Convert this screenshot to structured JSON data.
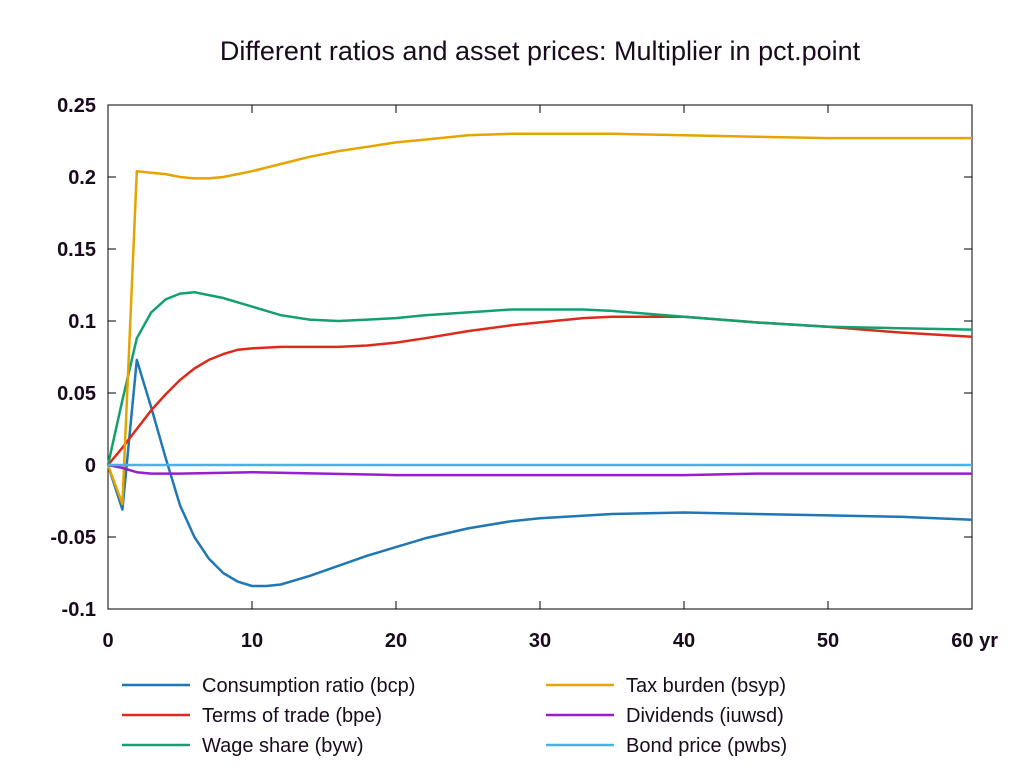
{
  "chart_data": {
    "type": "line",
    "title": "Different ratios and asset prices: Multiplier in pct.point",
    "xlabel": "",
    "ylabel": "",
    "xlim": [
      0,
      60
    ],
    "ylim": [
      -0.1,
      0.25
    ],
    "x_ticks": [
      0,
      10,
      20,
      30,
      40,
      50,
      60
    ],
    "x_tick_labels": [
      "0",
      "10",
      "20",
      "30",
      "40",
      "50",
      "60 yr"
    ],
    "y_ticks": [
      -0.1,
      -0.05,
      0,
      0.05,
      0.1,
      0.15,
      0.2,
      0.25
    ],
    "y_tick_labels": [
      "-0.1",
      "-0.05",
      "0",
      "0.05",
      "0.1",
      "0.15",
      "0.2",
      "0.25"
    ],
    "grid": false,
    "legend_position": "bottom",
    "series": [
      {
        "name": "Consumption ratio (bcp)",
        "color": "#1f77b4",
        "x": [
          0,
          1,
          2,
          3,
          4,
          5,
          6,
          7,
          8,
          9,
          10,
          11,
          12,
          14,
          16,
          18,
          20,
          22,
          25,
          28,
          30,
          35,
          40,
          45,
          50,
          55,
          60
        ],
        "y": [
          0,
          -0.031,
          0.073,
          0.04,
          0.005,
          -0.028,
          -0.05,
          -0.065,
          -0.075,
          -0.081,
          -0.084,
          -0.084,
          -0.083,
          -0.077,
          -0.07,
          -0.063,
          -0.057,
          -0.051,
          -0.044,
          -0.039,
          -0.037,
          -0.034,
          -0.033,
          -0.034,
          -0.035,
          -0.036,
          -0.038
        ]
      },
      {
        "name": "Terms of trade (bpe)",
        "color": "#dc2b1a",
        "x": [
          0,
          1,
          2,
          3,
          4,
          5,
          6,
          7,
          8,
          9,
          10,
          12,
          14,
          16,
          18,
          20,
          22,
          25,
          28,
          30,
          33,
          35,
          38,
          40,
          45,
          50,
          55,
          60
        ],
        "y": [
          0,
          0.012,
          0.025,
          0.038,
          0.049,
          0.059,
          0.067,
          0.073,
          0.077,
          0.08,
          0.081,
          0.082,
          0.082,
          0.082,
          0.083,
          0.085,
          0.088,
          0.093,
          0.097,
          0.099,
          0.102,
          0.103,
          0.103,
          0.103,
          0.099,
          0.096,
          0.092,
          0.089
        ]
      },
      {
        "name": "Wage share (byw)",
        "color": "#13a06e",
        "x": [
          0,
          1,
          2,
          3,
          4,
          5,
          6,
          7,
          8,
          9,
          10,
          12,
          14,
          16,
          18,
          20,
          22,
          25,
          28,
          30,
          33,
          35,
          40,
          45,
          50,
          55,
          60
        ],
        "y": [
          0,
          0.045,
          0.088,
          0.106,
          0.115,
          0.119,
          0.12,
          0.118,
          0.116,
          0.113,
          0.11,
          0.104,
          0.101,
          0.1,
          0.101,
          0.102,
          0.104,
          0.106,
          0.108,
          0.108,
          0.108,
          0.107,
          0.103,
          0.099,
          0.096,
          0.095,
          0.094
        ]
      },
      {
        "name": "Tax burden (bsyp)",
        "color": "#e6a400",
        "x": [
          0,
          1,
          2,
          3,
          4,
          5,
          6,
          7,
          8,
          9,
          10,
          12,
          14,
          16,
          18,
          20,
          22,
          25,
          28,
          30,
          35,
          40,
          45,
          50,
          55,
          60
        ],
        "y": [
          0,
          -0.027,
          0.204,
          0.203,
          0.202,
          0.2,
          0.199,
          0.199,
          0.2,
          0.202,
          0.204,
          0.209,
          0.214,
          0.218,
          0.221,
          0.224,
          0.226,
          0.229,
          0.23,
          0.23,
          0.23,
          0.229,
          0.228,
          0.227,
          0.227,
          0.227
        ]
      },
      {
        "name": "Dividends (iuwsd)",
        "color": "#9b1bd1",
        "x": [
          0,
          1,
          2,
          3,
          5,
          10,
          15,
          20,
          25,
          30,
          35,
          40,
          45,
          50,
          55,
          60
        ],
        "y": [
          0,
          -0.002,
          -0.005,
          -0.006,
          -0.006,
          -0.005,
          -0.006,
          -0.007,
          -0.007,
          -0.007,
          -0.007,
          -0.007,
          -0.006,
          -0.006,
          -0.006,
          -0.006
        ]
      },
      {
        "name": "Bond price (pwbs)",
        "color": "#45b3e6",
        "x": [
          0,
          60
        ],
        "y": [
          0,
          0
        ]
      }
    ]
  }
}
